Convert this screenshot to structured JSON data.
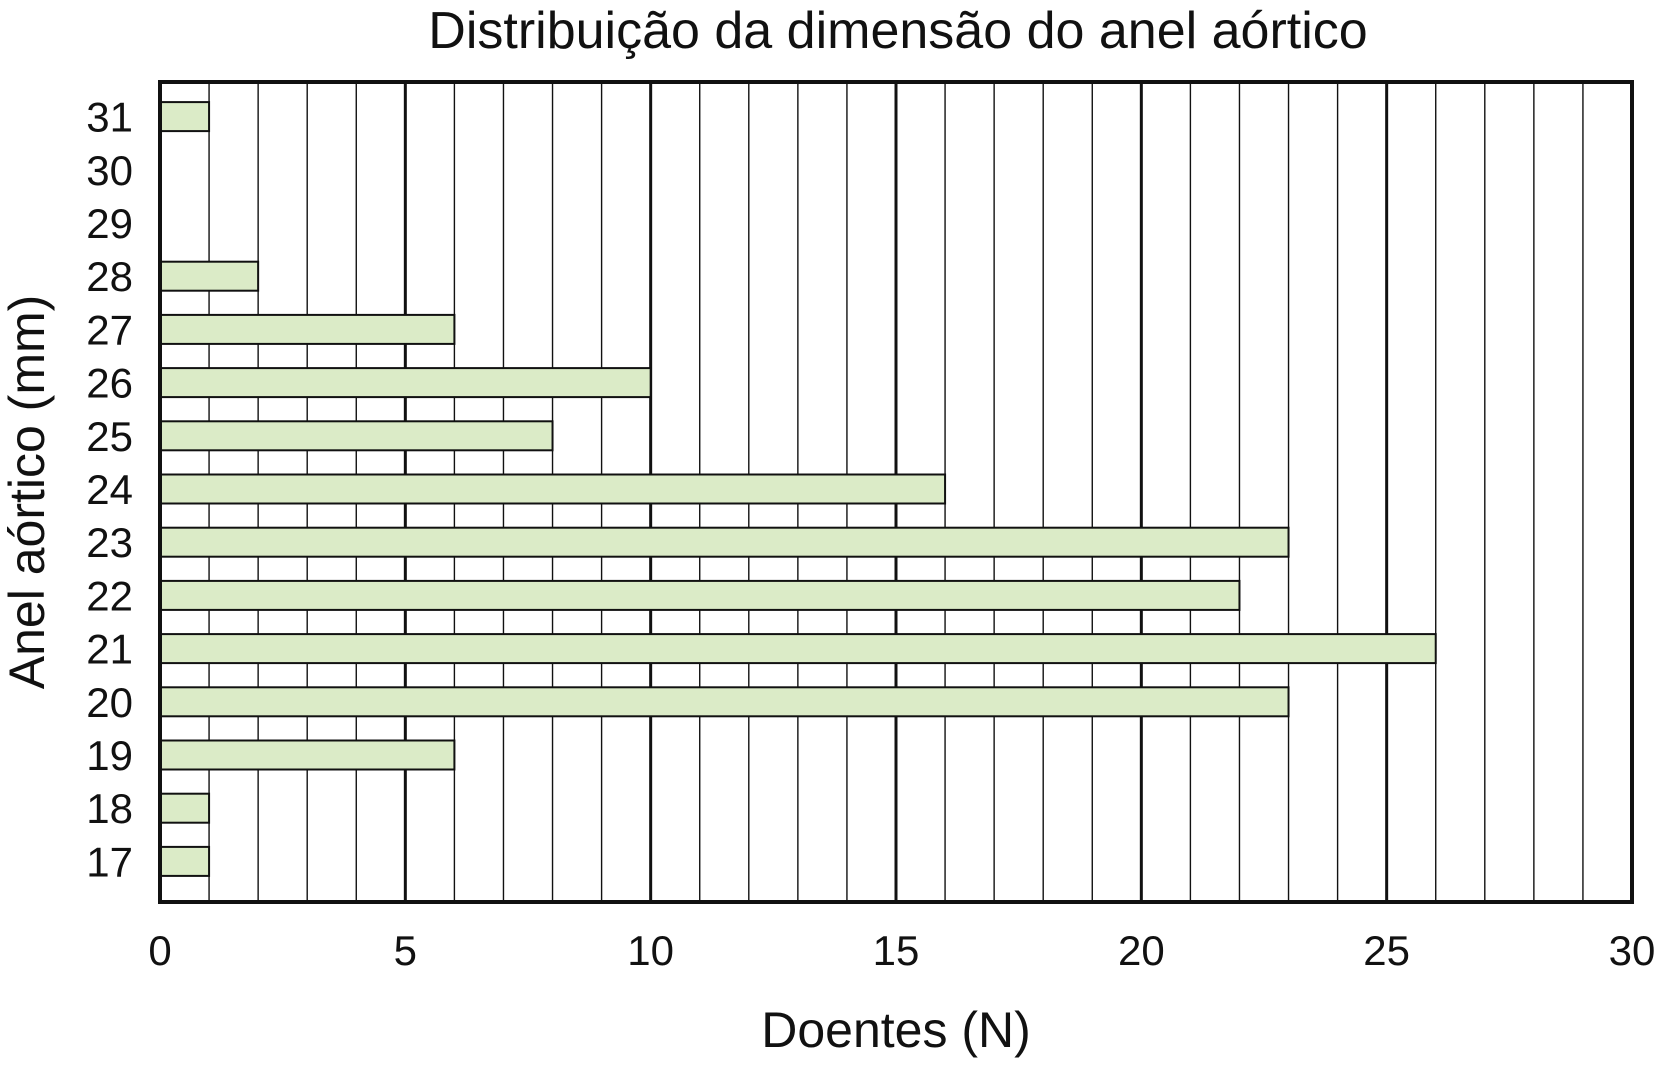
{
  "chart_data": {
    "type": "bar",
    "orientation": "horizontal",
    "title": "Distribuição da dimensão do anel aórtico",
    "xlabel": "Doentes (N)",
    "ylabel": "Anel aórtico (mm)",
    "xlim": [
      0,
      30
    ],
    "x_ticks": [
      "0",
      "5",
      "10",
      "15",
      "20",
      "25",
      "30"
    ],
    "x_major_step": 5,
    "x_minor_step": 1,
    "grid": "vertical",
    "categories": [
      "31",
      "30",
      "29",
      "28",
      "27",
      "26",
      "25",
      "24",
      "23",
      "22",
      "21",
      "20",
      "19",
      "18",
      "17"
    ],
    "values": [
      1,
      0,
      0,
      2,
      6,
      10,
      8,
      16,
      23,
      22,
      26,
      23,
      6,
      1,
      1
    ],
    "bar_color": "#dbebc7"
  }
}
